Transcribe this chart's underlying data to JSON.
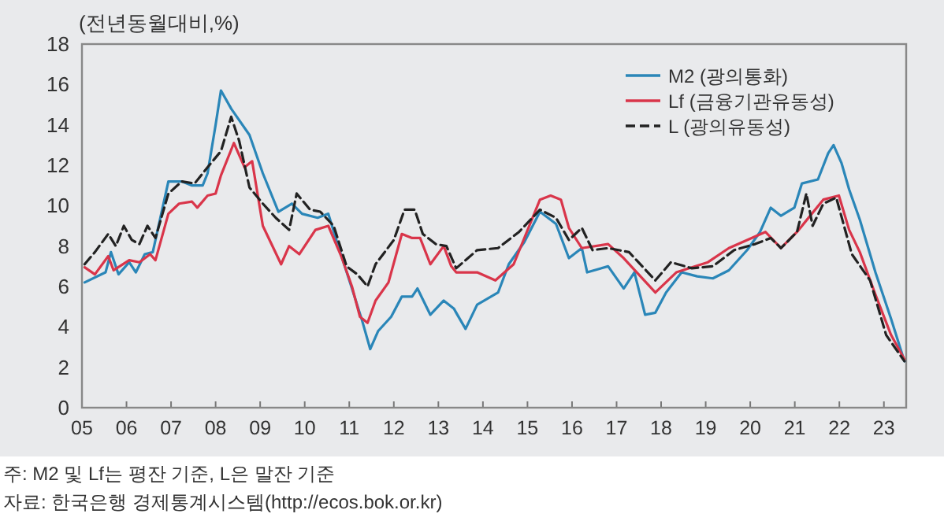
{
  "chart_data": {
    "type": "line",
    "ylabel": "(전년동월대비,%)",
    "annotations": [
      "주: M2 및 Lf는 평잔 기준, L은 말잔 기준",
      "자료: 한국은행 경제통계시스템(http://ecos.bok.or.kr)"
    ],
    "xlim": [
      2005,
      2023.5
    ],
    "ylim": [
      0,
      18
    ],
    "xticks": [
      {
        "value": 2005,
        "label": "05"
      },
      {
        "value": 2006,
        "label": "06"
      },
      {
        "value": 2007,
        "label": "07"
      },
      {
        "value": 2008,
        "label": "08"
      },
      {
        "value": 2009,
        "label": "09"
      },
      {
        "value": 2010,
        "label": "10"
      },
      {
        "value": 2011,
        "label": "11"
      },
      {
        "value": 2012,
        "label": "12"
      },
      {
        "value": 2013,
        "label": "13"
      },
      {
        "value": 2014,
        "label": "14"
      },
      {
        "value": 2015,
        "label": "15"
      },
      {
        "value": 2016,
        "label": "16"
      },
      {
        "value": 2017,
        "label": "17"
      },
      {
        "value": 2018,
        "label": "18"
      },
      {
        "value": 2019,
        "label": "19"
      },
      {
        "value": 2020,
        "label": "20"
      },
      {
        "value": 2021,
        "label": "21"
      },
      {
        "value": 2022,
        "label": "22"
      },
      {
        "value": 2023,
        "label": "23"
      }
    ],
    "yticks": [
      0,
      2,
      4,
      6,
      8,
      10,
      12,
      14,
      16,
      18
    ],
    "grid": false,
    "legend": "top right",
    "marker": "none",
    "series": [
      {
        "name": "M2 (광의통화)",
        "color": "#2a86b8",
        "line_style": "solid",
        "x": [
          2005.06,
          2005.53,
          2005.65,
          2005.82,
          2006.06,
          2006.21,
          2006.41,
          2006.59,
          2006.94,
          2007.24,
          2007.47,
          2007.71,
          2007.82,
          2008.0,
          2008.12,
          2008.35,
          2008.76,
          2009.06,
          2009.41,
          2009.71,
          2009.94,
          2010.29,
          2010.53,
          2010.71,
          2011.06,
          2011.29,
          2011.47,
          2011.65,
          2011.94,
          2012.18,
          2012.41,
          2012.53,
          2012.82,
          2013.12,
          2013.35,
          2013.4,
          2013.61,
          2013.87,
          2014.34,
          2014.58,
          2014.93,
          2015.28,
          2015.64,
          2015.93,
          2016.22,
          2016.34,
          2016.81,
          2017.16,
          2017.4,
          2017.64,
          2017.87,
          2018.11,
          2018.46,
          2018.81,
          2019.16,
          2019.52,
          2019.93,
          2020.22,
          2020.46,
          2020.69,
          2020.99,
          2021.16,
          2021.52,
          2021.75,
          2021.87,
          2022.05,
          2022.22,
          2022.46,
          2022.81,
          2023.16,
          2023.46
        ],
        "values": [
          6.2,
          6.7,
          7.7,
          6.6,
          7.2,
          6.7,
          7.6,
          7.7,
          11.2,
          11.2,
          11.0,
          11.0,
          11.6,
          14.0,
          15.7,
          14.8,
          13.5,
          11.6,
          9.7,
          10.1,
          9.6,
          9.4,
          9.6,
          8.3,
          5.9,
          4.3,
          2.9,
          3.8,
          4.5,
          5.5,
          5.5,
          5.9,
          4.6,
          5.3,
          4.9,
          4.7,
          3.9,
          5.1,
          5.7,
          7.1,
          8.2,
          9.7,
          9.1,
          7.4,
          7.9,
          6.7,
          7.0,
          5.9,
          6.7,
          4.6,
          4.7,
          5.7,
          6.7,
          6.5,
          6.4,
          6.8,
          7.8,
          8.7,
          9.9,
          9.5,
          9.9,
          11.1,
          11.3,
          12.6,
          13.0,
          12.1,
          10.8,
          9.3,
          6.7,
          4.4,
          2.3
        ]
      },
      {
        "name": "Lf (금융기관유동성)",
        "color": "#d9354a",
        "line_style": "solid",
        "x": [
          2005.06,
          2005.29,
          2005.59,
          2005.71,
          2006.06,
          2006.29,
          2006.53,
          2006.65,
          2006.94,
          2007.18,
          2007.47,
          2007.59,
          2007.82,
          2008.0,
          2008.12,
          2008.41,
          2008.65,
          2008.82,
          2009.06,
          2009.47,
          2009.65,
          2009.88,
          2010.24,
          2010.53,
          2010.82,
          2011.06,
          2011.24,
          2011.41,
          2011.59,
          2011.88,
          2012.18,
          2012.41,
          2012.59,
          2012.82,
          2013.12,
          2013.29,
          2013.4,
          2013.87,
          2014.28,
          2014.69,
          2015.28,
          2015.52,
          2015.75,
          2015.93,
          2016.22,
          2016.81,
          2017.16,
          2017.87,
          2018.34,
          2019.05,
          2019.52,
          2019.93,
          2020.34,
          2020.69,
          2021.05,
          2021.64,
          2021.99,
          2022.22,
          2022.46,
          2022.81,
          2023.16,
          2023.46
        ],
        "values": [
          6.95,
          6.6,
          7.5,
          6.8,
          7.3,
          7.2,
          7.6,
          7.3,
          9.6,
          10.1,
          10.2,
          9.9,
          10.5,
          10.6,
          11.5,
          13.1,
          11.9,
          12.2,
          9.0,
          7.1,
          8.0,
          7.6,
          8.8,
          9.0,
          7.5,
          6.0,
          4.5,
          4.2,
          5.3,
          6.2,
          8.6,
          8.4,
          8.4,
          7.1,
          8.0,
          7.0,
          6.7,
          6.7,
          6.3,
          7.1,
          10.3,
          10.5,
          10.3,
          8.9,
          7.9,
          8.1,
          7.4,
          5.7,
          6.7,
          7.2,
          7.9,
          8.3,
          8.7,
          7.9,
          8.7,
          10.3,
          10.5,
          8.8,
          7.7,
          5.6,
          3.6,
          2.4
        ]
      },
      {
        "name": "L (광의유동성)",
        "color": "#222222",
        "line_style": "dashed",
        "x": [
          2005.06,
          2005.29,
          2005.59,
          2005.76,
          2005.94,
          2006.12,
          2006.29,
          2006.47,
          2006.65,
          2006.94,
          2007.24,
          2007.53,
          2007.82,
          2008.12,
          2008.35,
          2008.53,
          2008.76,
          2009.06,
          2009.35,
          2009.65,
          2009.82,
          2010.12,
          2010.35,
          2010.65,
          2010.94,
          2011.18,
          2011.41,
          2011.59,
          2012.0,
          2012.24,
          2012.47,
          2012.65,
          2012.94,
          2013.18,
          2013.4,
          2013.87,
          2014.34,
          2014.81,
          2015.28,
          2015.64,
          2015.93,
          2016.22,
          2016.46,
          2016.81,
          2017.28,
          2017.87,
          2018.22,
          2018.69,
          2019.16,
          2019.64,
          2020.11,
          2020.46,
          2020.69,
          2021.05,
          2021.26,
          2021.4,
          2021.64,
          2021.93,
          2022.28,
          2022.69,
          2023.05,
          2023.46
        ],
        "values": [
          7.1,
          7.7,
          8.6,
          8.0,
          9.0,
          8.3,
          8.1,
          9.0,
          8.4,
          10.6,
          11.2,
          11.1,
          11.9,
          12.7,
          14.4,
          13.2,
          10.9,
          10.1,
          9.4,
          8.8,
          10.6,
          9.8,
          9.7,
          9.0,
          7.0,
          6.6,
          6.0,
          7.1,
          8.3,
          9.8,
          9.8,
          8.6,
          8.1,
          8.0,
          6.9,
          7.8,
          7.9,
          8.7,
          9.8,
          9.4,
          8.3,
          8.9,
          7.8,
          7.9,
          7.7,
          6.3,
          7.2,
          6.9,
          7.0,
          7.8,
          8.1,
          8.4,
          7.9,
          8.7,
          10.6,
          9.0,
          10.1,
          10.4,
          7.6,
          6.3,
          3.6,
          2.3
        ]
      }
    ]
  }
}
